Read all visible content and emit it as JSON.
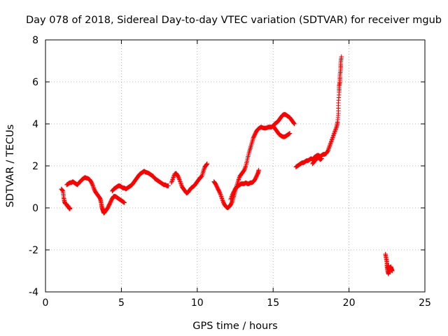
{
  "chart_data": {
    "type": "scatter",
    "title": "Day 078 of 2018, Sidereal Day-to-day VTEC variation (SDTVAR) for receiver mgub",
    "xlabel": "GPS time / hours",
    "ylabel": "SDTVAR / TECUs",
    "xlim": [
      0,
      25
    ],
    "ylim": [
      -4,
      8
    ],
    "xticks": [
      0,
      5,
      10,
      15,
      20,
      25
    ],
    "yticks": [
      -4,
      -2,
      0,
      2,
      4,
      6,
      8
    ],
    "grid": true,
    "marker": "+",
    "marker_color": "#ff0000",
    "series": [
      {
        "name": "SDTVAR",
        "segments": [
          [
            [
              1.05,
              0.9
            ],
            [
              1.15,
              0.8
            ],
            [
              1.2,
              0.5
            ],
            [
              1.25,
              0.3
            ],
            [
              1.3,
              0.2
            ],
            [
              1.35,
              0.2
            ],
            [
              1.4,
              0.15
            ],
            [
              1.45,
              0.1
            ],
            [
              1.5,
              0.05
            ],
            [
              1.55,
              0.0
            ],
            [
              1.6,
              -0.05
            ],
            [
              1.62,
              0.0
            ]
          ],
          [
            [
              1.4,
              1.1
            ],
            [
              1.5,
              1.15
            ],
            [
              1.6,
              1.2
            ],
            [
              1.7,
              1.2
            ],
            [
              1.8,
              1.25
            ],
            [
              1.9,
              1.2
            ],
            [
              2.0,
              1.15
            ],
            [
              2.1,
              1.1
            ],
            [
              2.2,
              1.2
            ],
            [
              2.3,
              1.25
            ],
            [
              2.4,
              1.35
            ],
            [
              2.5,
              1.4
            ],
            [
              2.6,
              1.45
            ],
            [
              2.7,
              1.42
            ],
            [
              2.8,
              1.4
            ],
            [
              2.9,
              1.35
            ],
            [
              3.0,
              1.25
            ],
            [
              3.1,
              1.1
            ],
            [
              3.2,
              0.9
            ],
            [
              3.3,
              0.75
            ],
            [
              3.4,
              0.65
            ],
            [
              3.5,
              0.55
            ],
            [
              3.6,
              0.45
            ],
            [
              3.65,
              0.3
            ],
            [
              3.7,
              0.1
            ],
            [
              3.75,
              -0.05
            ],
            [
              3.8,
              -0.15
            ],
            [
              3.85,
              -0.25
            ],
            [
              3.9,
              -0.2
            ],
            [
              4.0,
              -0.1
            ],
            [
              4.1,
              0.0
            ],
            [
              4.2,
              0.15
            ],
            [
              4.3,
              0.3
            ],
            [
              4.4,
              0.45
            ],
            [
              4.5,
              0.55
            ],
            [
              4.6,
              0.55
            ],
            [
              4.7,
              0.5
            ],
            [
              4.8,
              0.45
            ],
            [
              4.9,
              0.4
            ],
            [
              5.0,
              0.35
            ],
            [
              5.1,
              0.3
            ],
            [
              5.2,
              0.25
            ]
          ],
          [
            [
              4.4,
              0.8
            ],
            [
              4.5,
              0.9
            ],
            [
              4.6,
              0.95
            ],
            [
              4.7,
              1.0
            ],
            [
              4.8,
              1.05
            ],
            [
              4.9,
              1.05
            ],
            [
              5.0,
              1.0
            ],
            [
              5.1,
              0.95
            ],
            [
              5.2,
              0.95
            ],
            [
              5.3,
              0.9
            ],
            [
              5.4,
              0.95
            ],
            [
              5.5,
              1.0
            ],
            [
              5.6,
              1.05
            ],
            [
              5.7,
              1.1
            ],
            [
              5.8,
              1.2
            ],
            [
              5.9,
              1.3
            ],
            [
              6.0,
              1.4
            ],
            [
              6.1,
              1.5
            ],
            [
              6.2,
              1.6
            ],
            [
              6.3,
              1.65
            ],
            [
              6.4,
              1.7
            ],
            [
              6.5,
              1.75
            ],
            [
              6.6,
              1.7
            ],
            [
              6.7,
              1.68
            ],
            [
              6.8,
              1.65
            ],
            [
              6.9,
              1.6
            ],
            [
              7.0,
              1.55
            ],
            [
              7.1,
              1.5
            ],
            [
              7.2,
              1.4
            ],
            [
              7.3,
              1.35
            ],
            [
              7.4,
              1.3
            ],
            [
              7.5,
              1.25
            ],
            [
              7.6,
              1.2
            ],
            [
              7.7,
              1.15
            ],
            [
              7.8,
              1.1
            ],
            [
              7.9,
              1.1
            ],
            [
              8.0,
              1.05
            ],
            [
              8.1,
              1.05
            ]
          ],
          [
            [
              8.3,
              1.2
            ],
            [
              8.4,
              1.4
            ],
            [
              8.5,
              1.6
            ],
            [
              8.6,
              1.65
            ],
            [
              8.7,
              1.55
            ],
            [
              8.8,
              1.4
            ],
            [
              8.9,
              1.2
            ],
            [
              9.0,
              1.0
            ],
            [
              9.1,
              0.9
            ],
            [
              9.2,
              0.8
            ],
            [
              9.3,
              0.7
            ],
            [
              9.4,
              0.75
            ],
            [
              9.5,
              0.85
            ],
            [
              9.6,
              0.95
            ],
            [
              9.7,
              1.0
            ],
            [
              9.8,
              1.05
            ],
            [
              9.9,
              1.15
            ],
            [
              10.0,
              1.25
            ],
            [
              10.1,
              1.35
            ],
            [
              10.2,
              1.45
            ],
            [
              10.3,
              1.5
            ],
            [
              10.4,
              1.75
            ],
            [
              10.5,
              1.95
            ],
            [
              10.6,
              2.05
            ],
            [
              10.65,
              2.1
            ]
          ],
          [
            [
              11.1,
              1.25
            ],
            [
              11.2,
              1.15
            ],
            [
              11.3,
              1.0
            ],
            [
              11.4,
              0.85
            ],
            [
              11.5,
              0.7
            ],
            [
              11.6,
              0.5
            ],
            [
              11.7,
              0.3
            ],
            [
              11.8,
              0.15
            ],
            [
              11.9,
              0.05
            ],
            [
              12.0,
              0.0
            ],
            [
              12.1,
              0.05
            ],
            [
              12.2,
              0.15
            ],
            [
              12.3,
              0.3
            ],
            [
              12.4,
              0.55
            ],
            [
              12.5,
              0.8
            ],
            [
              12.6,
              1.05
            ],
            [
              12.7,
              1.3
            ],
            [
              12.8,
              1.5
            ],
            [
              12.9,
              1.6
            ],
            [
              13.0,
              1.7
            ],
            [
              13.1,
              1.8
            ],
            [
              13.2,
              2.0
            ],
            [
              13.3,
              2.3
            ],
            [
              13.4,
              2.6
            ],
            [
              13.5,
              2.85
            ],
            [
              13.6,
              3.1
            ],
            [
              13.7,
              3.35
            ],
            [
              13.8,
              3.5
            ],
            [
              13.9,
              3.65
            ],
            [
              14.0,
              3.75
            ],
            [
              14.1,
              3.8
            ],
            [
              14.2,
              3.85
            ],
            [
              14.3,
              3.82
            ],
            [
              14.4,
              3.8
            ],
            [
              14.5,
              3.8
            ],
            [
              14.6,
              3.82
            ],
            [
              14.7,
              3.85
            ],
            [
              14.8,
              3.85
            ],
            [
              14.9,
              3.85
            ],
            [
              15.0,
              3.9
            ],
            [
              15.1,
              4.0
            ],
            [
              15.2,
              4.05
            ],
            [
              15.3,
              4.1
            ],
            [
              15.4,
              4.2
            ],
            [
              15.5,
              4.3
            ],
            [
              15.6,
              4.4
            ],
            [
              15.7,
              4.45
            ],
            [
              15.8,
              4.45
            ],
            [
              15.9,
              4.4
            ],
            [
              16.0,
              4.35
            ],
            [
              16.1,
              4.3
            ],
            [
              16.2,
              4.2
            ],
            [
              16.3,
              4.1
            ],
            [
              16.4,
              4.0
            ]
          ],
          [
            [
              12.2,
              0.4
            ],
            [
              12.3,
              0.6
            ],
            [
              12.4,
              0.75
            ],
            [
              12.5,
              0.9
            ],
            [
              12.6,
              1.0
            ],
            [
              12.7,
              1.05
            ],
            [
              12.8,
              1.1
            ],
            [
              12.9,
              1.15
            ],
            [
              13.0,
              1.15
            ],
            [
              13.1,
              1.15
            ],
            [
              13.2,
              1.2
            ],
            [
              13.3,
              1.15
            ],
            [
              13.4,
              1.15
            ],
            [
              13.5,
              1.2
            ],
            [
              13.6,
              1.2
            ],
            [
              13.7,
              1.25
            ],
            [
              13.8,
              1.35
            ],
            [
              13.9,
              1.5
            ],
            [
              14.0,
              1.65
            ],
            [
              14.05,
              1.8
            ]
          ],
          [
            [
              15.0,
              3.9
            ],
            [
              15.1,
              3.8
            ],
            [
              15.2,
              3.7
            ],
            [
              15.3,
              3.6
            ],
            [
              15.4,
              3.5
            ],
            [
              15.5,
              3.45
            ],
            [
              15.6,
              3.4
            ],
            [
              15.7,
              3.38
            ],
            [
              15.8,
              3.4
            ],
            [
              15.9,
              3.45
            ],
            [
              16.0,
              3.5
            ],
            [
              16.1,
              3.55
            ]
          ],
          [
            [
              16.5,
              1.95
            ],
            [
              16.6,
              2.0
            ],
            [
              16.7,
              2.05
            ],
            [
              16.8,
              2.1
            ],
            [
              16.9,
              2.15
            ],
            [
              17.0,
              2.15
            ],
            [
              17.1,
              2.2
            ],
            [
              17.2,
              2.25
            ],
            [
              17.3,
              2.25
            ],
            [
              17.4,
              2.3
            ],
            [
              17.5,
              2.35
            ],
            [
              17.6,
              2.3
            ],
            [
              17.7,
              2.4
            ],
            [
              17.8,
              2.45
            ],
            [
              17.9,
              2.5
            ],
            [
              18.0,
              2.5
            ],
            [
              18.1,
              2.45
            ],
            [
              18.2,
              2.5
            ],
            [
              18.3,
              2.55
            ],
            [
              18.4,
              2.55
            ],
            [
              18.5,
              2.6
            ],
            [
              18.6,
              2.7
            ],
            [
              18.7,
              2.9
            ],
            [
              18.8,
              3.1
            ],
            [
              18.9,
              3.3
            ],
            [
              19.0,
              3.5
            ],
            [
              19.1,
              3.7
            ],
            [
              19.2,
              3.9
            ],
            [
              19.25,
              4.1
            ],
            [
              19.3,
              4.5
            ],
            [
              19.3,
              5.0
            ],
            [
              19.35,
              5.5
            ],
            [
              19.35,
              5.8
            ],
            [
              19.4,
              6.0
            ],
            [
              19.4,
              6.3
            ],
            [
              19.45,
              6.6
            ],
            [
              19.45,
              6.9
            ],
            [
              19.5,
              7.2
            ]
          ],
          [
            [
              17.6,
              2.1
            ],
            [
              17.7,
              2.2
            ],
            [
              17.8,
              2.3
            ],
            [
              17.9,
              2.35
            ],
            [
              18.0,
              2.4
            ],
            [
              18.1,
              2.3
            ],
            [
              18.2,
              2.35
            ]
          ],
          [
            [
              22.4,
              -2.2
            ],
            [
              22.45,
              -2.4
            ],
            [
              22.5,
              -2.6
            ],
            [
              22.5,
              -2.8
            ],
            [
              22.55,
              -3.0
            ],
            [
              22.6,
              -3.15
            ],
            [
              22.65,
              -2.95
            ],
            [
              22.7,
              -2.85
            ],
            [
              22.75,
              -2.8
            ],
            [
              22.8,
              -2.9
            ],
            [
              22.85,
              -3.0
            ],
            [
              22.55,
              -2.9
            ],
            [
              22.6,
              -2.75
            ],
            [
              22.7,
              -3.05
            ]
          ]
        ]
      }
    ]
  }
}
